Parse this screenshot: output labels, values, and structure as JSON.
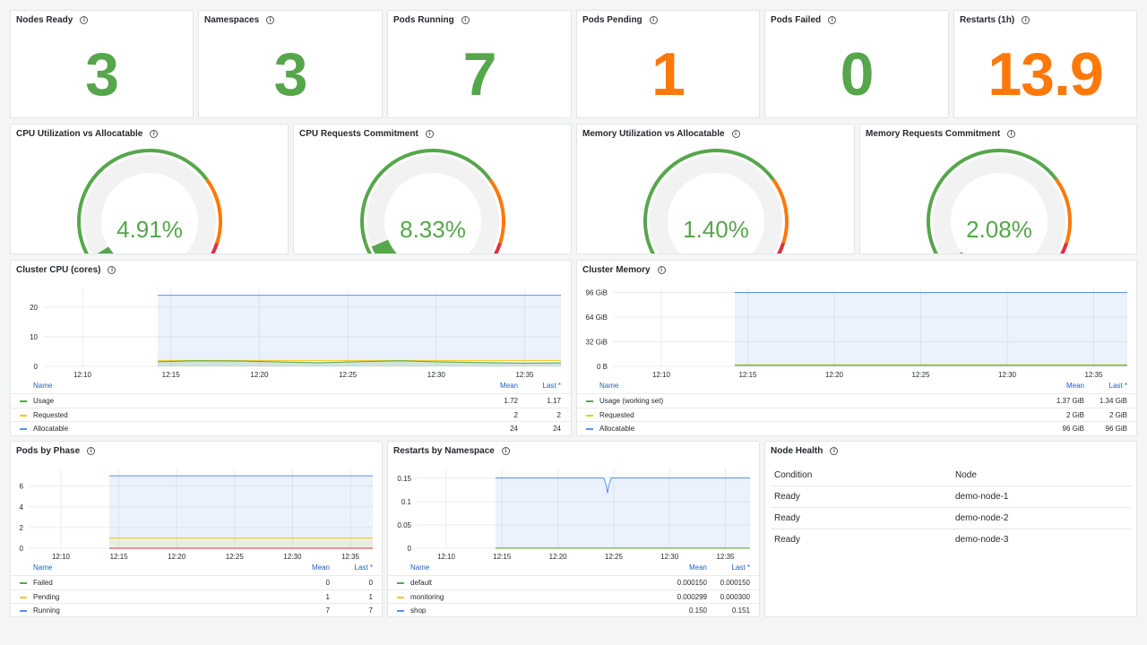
{
  "colors": {
    "green": "#56a64b",
    "orange": "#ff780a",
    "red": "#e02f44",
    "blue": "#5794f2",
    "yellow": "#f2cc0c",
    "link": "#1f60c4"
  },
  "stats": [
    {
      "title": "Nodes Ready",
      "value": "3",
      "color": "#56a64b"
    },
    {
      "title": "Namespaces",
      "value": "3",
      "color": "#56a64b"
    },
    {
      "title": "Pods Running",
      "value": "7",
      "color": "#56a64b"
    },
    {
      "title": "Pods Pending",
      "value": "1",
      "color": "#ff780a"
    },
    {
      "title": "Pods Failed",
      "value": "0",
      "color": "#56a64b"
    },
    {
      "title": "Restarts (1h)",
      "value": "13.9",
      "color": "#ff780a"
    }
  ],
  "gauges": [
    {
      "title": "CPU Utilization vs Allocatable",
      "value": "4.91%",
      "fraction": 0.0491
    },
    {
      "title": "CPU Requests Commitment",
      "value": "8.33%",
      "fraction": 0.0833
    },
    {
      "title": "Memory Utilization vs Allocatable",
      "value": "1.40%",
      "fraction": 0.014
    },
    {
      "title": "Memory Requests Commitment",
      "value": "2.08%",
      "fraction": 0.0208
    }
  ],
  "cpu_chart": {
    "title": "Cluster CPU (cores)",
    "yticks": [
      "20",
      "10",
      "0"
    ],
    "xticks": [
      "12:10",
      "12:15",
      "12:20",
      "12:25",
      "12:30",
      "12:35"
    ],
    "legend_header": {
      "name": "Name",
      "mean": "Mean",
      "last": "Last *"
    },
    "legend": [
      {
        "name": "Usage",
        "mean": "1.72",
        "last": "1.17",
        "color": "#56a64b"
      },
      {
        "name": "Requested",
        "mean": "2",
        "last": "2",
        "color": "#f2cc0c"
      },
      {
        "name": "Allocatable",
        "mean": "24",
        "last": "24",
        "color": "#5794f2"
      }
    ]
  },
  "mem_chart": {
    "title": "Cluster Memory",
    "yticks": [
      "96 GiB",
      "64 GiB",
      "32 GiB",
      "0 B"
    ],
    "xticks": [
      "12:10",
      "12:15",
      "12:20",
      "12:25",
      "12:30",
      "12:35"
    ],
    "legend_header": {
      "name": "Name",
      "mean": "Mean",
      "last": "Last *"
    },
    "legend": [
      {
        "name": "Usage (working set)",
        "mean": "1.37 GiB",
        "last": "1.34 GiB",
        "color": "#56a64b"
      },
      {
        "name": "Requested",
        "mean": "2 GiB",
        "last": "2 GiB",
        "color": "#f2cc0c"
      },
      {
        "name": "Allocatable",
        "mean": "96 GiB",
        "last": "96 GiB",
        "color": "#5794f2"
      }
    ]
  },
  "pods_chart": {
    "title": "Pods by Phase",
    "yticks": [
      "6",
      "4",
      "2",
      "0"
    ],
    "xticks": [
      "12:10",
      "12:15",
      "12:20",
      "12:25",
      "12:30",
      "12:35"
    ],
    "legend_header": {
      "name": "Name",
      "mean": "Mean",
      "last": "Last *"
    },
    "legend": [
      {
        "name": "Failed",
        "mean": "0",
        "last": "0",
        "color": "#56a64b"
      },
      {
        "name": "Pending",
        "mean": "1",
        "last": "1",
        "color": "#f2cc0c"
      },
      {
        "name": "Running",
        "mean": "7",
        "last": "7",
        "color": "#5794f2"
      }
    ]
  },
  "restarts_chart": {
    "title": "Restarts by Namespace",
    "yticks": [
      "0.15",
      "0.1",
      "0.05",
      "0"
    ],
    "xticks": [
      "12:10",
      "12:15",
      "12:20",
      "12:25",
      "12:30",
      "12:35"
    ],
    "legend_header": {
      "name": "Name",
      "mean": "Mean",
      "last": "Last *"
    },
    "legend": [
      {
        "name": "default",
        "mean": "0.000150",
        "last": "0.000150",
        "color": "#56a64b"
      },
      {
        "name": "monitoring",
        "mean": "0.000299",
        "last": "0.000300",
        "color": "#f2cc0c"
      },
      {
        "name": "shop",
        "mean": "0.150",
        "last": "0.151",
        "color": "#5794f2"
      }
    ]
  },
  "node_health": {
    "title": "Node Health",
    "headers": [
      "Condition",
      "Node"
    ],
    "rows": [
      [
        "Ready",
        "demo-node-1"
      ],
      [
        "Ready",
        "demo-node-2"
      ],
      [
        "Ready",
        "demo-node-3"
      ]
    ]
  }
}
